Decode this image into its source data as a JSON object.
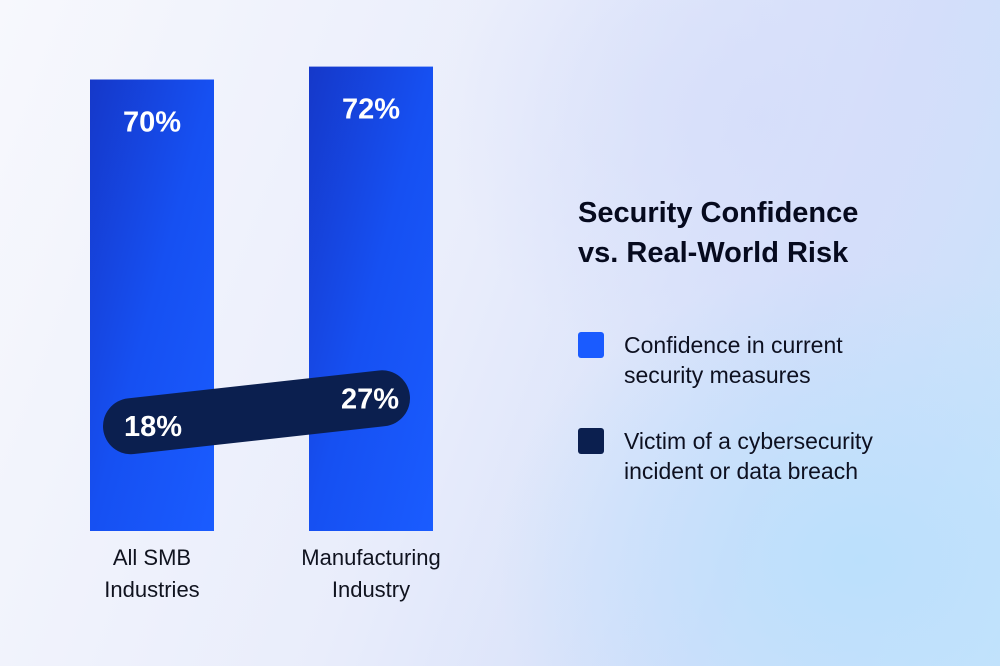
{
  "title_lines": [
    "Security Confidence",
    "vs. Real-World Risk"
  ],
  "legend": [
    {
      "lines": [
        "Confidence in current",
        "security measures"
      ],
      "color": "#1a5bff"
    },
    {
      "lines": [
        "Victim of a cybersecurity",
        "incident or data breach"
      ],
      "color": "#0b1f4f"
    }
  ],
  "chart_data": {
    "type": "bar",
    "title": "Security Confidence vs. Real-World Risk",
    "categories": [
      [
        "All SMB",
        "Industries"
      ],
      [
        "Manufacturing",
        "Industry"
      ]
    ],
    "series": [
      {
        "name": "Confidence in current security measures",
        "values": [
          70,
          72
        ],
        "labels": [
          "70%",
          "72%"
        ],
        "color": "#1a5bff"
      },
      {
        "name": "Victim of a cybersecurity incident or data breach",
        "values": [
          18,
          27
        ],
        "labels": [
          "18%",
          "27%"
        ],
        "color": "#0b1f4f"
      }
    ],
    "unit": "%",
    "ylim": [
      0,
      100
    ],
    "grid": false,
    "legend_position": "right"
  }
}
